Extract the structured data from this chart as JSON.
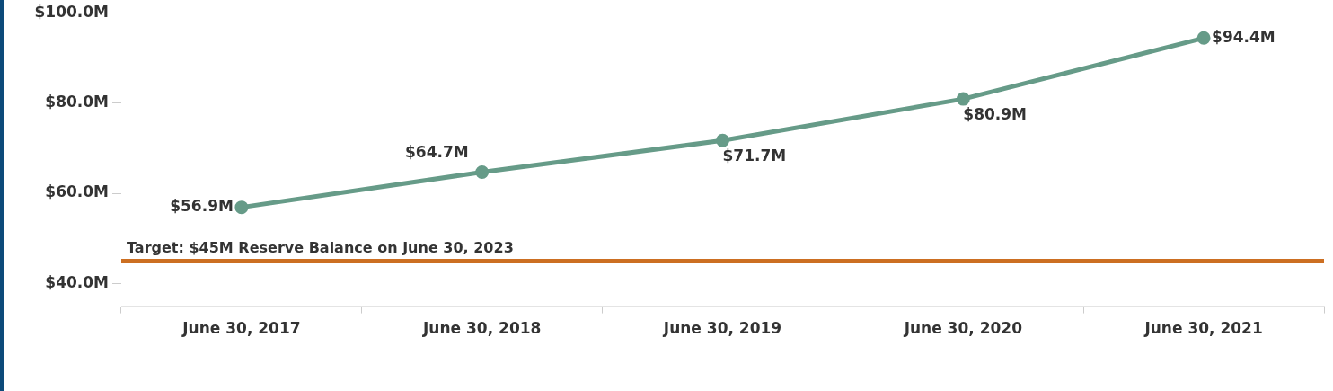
{
  "chart_data": {
    "type": "line",
    "categories": [
      "June 30, 2017",
      "June 30, 2018",
      "June 30, 2019",
      "June 30, 2020",
      "June 30, 2021"
    ],
    "series": [
      {
        "color": "#669b88",
        "values": [
          56.9,
          64.7,
          71.7,
          80.9,
          94.4
        ],
        "value_labels": [
          "$56.9M",
          "$64.7M",
          "$71.7M",
          "$80.9M",
          "$94.4M"
        ]
      }
    ],
    "ylim": [
      35,
      100
    ],
    "yticks": [
      {
        "value": 40,
        "label": "$40.0M"
      },
      {
        "value": 60,
        "label": "$60.0M"
      },
      {
        "value": 80,
        "label": "$80.0M"
      },
      {
        "value": 100,
        "label": "$100.0M"
      }
    ],
    "ref_lines": [
      {
        "axis": "y",
        "value": 45,
        "label": "Target: $45M Reserve Balance on June 30, 2023",
        "color": "#cc6f22"
      }
    ],
    "marker": "circle",
    "legend": false
  }
}
